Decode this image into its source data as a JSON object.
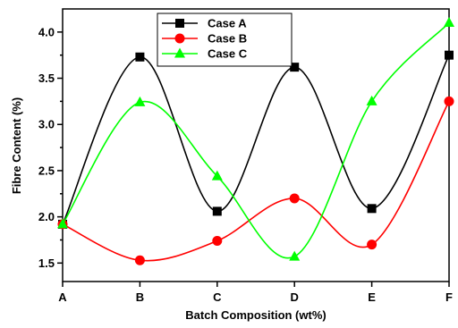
{
  "chart_data": {
    "type": "line",
    "title": "",
    "xlabel": "Batch Composition (wt%)",
    "ylabel": "Fibre Content (%)",
    "categories": [
      "A",
      "B",
      "C",
      "D",
      "E",
      "F"
    ],
    "ylim": [
      1.3,
      4.25
    ],
    "yticks": [
      "1.5",
      "2.0",
      "2.5",
      "3.0",
      "3.5",
      "4.0"
    ],
    "ytick_values": [
      1.5,
      2.0,
      2.5,
      3.0,
      3.5,
      4.0
    ],
    "grid": false,
    "legend_position": "top-center",
    "smooth": true,
    "series": [
      {
        "name": "Case A",
        "color": "#000000",
        "marker": "square",
        "values": [
          1.92,
          3.73,
          2.06,
          3.62,
          2.09,
          3.75
        ]
      },
      {
        "name": "Case B",
        "color": "#ff0000",
        "marker": "circle",
        "values": [
          1.92,
          1.53,
          1.74,
          2.2,
          1.7,
          3.25
        ]
      },
      {
        "name": "Case C",
        "color": "#00ff00",
        "marker": "triangle",
        "values": [
          1.92,
          3.24,
          2.44,
          1.57,
          3.25,
          4.1
        ]
      }
    ]
  }
}
